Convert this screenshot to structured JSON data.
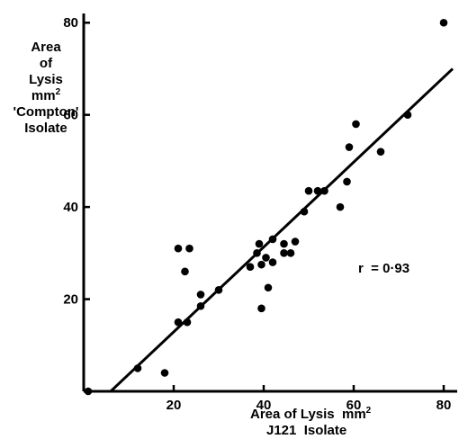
{
  "chart_data": {
    "type": "scatter",
    "ylabel_lines": [
      "Area",
      "of",
      "Lysis",
      "mm",
      "'Compton'",
      "Isolate"
    ],
    "xlabel_lines": [
      "Area of Lysis  mm",
      "J121  Isolate"
    ],
    "unit_superscript": "2",
    "annotation": "r  = 0·93",
    "xlim": [
      0,
      83
    ],
    "ylim": [
      0,
      82
    ],
    "xticks": [
      20,
      40,
      60,
      80
    ],
    "yticks": [
      20,
      40,
      60,
      80
    ],
    "x_tick_labels": [
      "20",
      "40",
      "60",
      "80"
    ],
    "y_tick_labels": [
      "20",
      "40",
      "60",
      "80"
    ],
    "points": [
      {
        "x": 1,
        "y": 0
      },
      {
        "x": 12,
        "y": 5
      },
      {
        "x": 18,
        "y": 4
      },
      {
        "x": 21,
        "y": 31
      },
      {
        "x": 21,
        "y": 15
      },
      {
        "x": 22.5,
        "y": 26
      },
      {
        "x": 23,
        "y": 15
      },
      {
        "x": 23.5,
        "y": 31
      },
      {
        "x": 26,
        "y": 18.5
      },
      {
        "x": 26,
        "y": 21
      },
      {
        "x": 30,
        "y": 22
      },
      {
        "x": 37,
        "y": 27
      },
      {
        "x": 38.5,
        "y": 30
      },
      {
        "x": 39,
        "y": 32
      },
      {
        "x": 39.5,
        "y": 27.5
      },
      {
        "x": 39.5,
        "y": 18
      },
      {
        "x": 40.5,
        "y": 29
      },
      {
        "x": 41,
        "y": 22.5
      },
      {
        "x": 42,
        "y": 28
      },
      {
        "x": 42,
        "y": 33
      },
      {
        "x": 44.5,
        "y": 32
      },
      {
        "x": 44.5,
        "y": 30
      },
      {
        "x": 46,
        "y": 30
      },
      {
        "x": 47,
        "y": 32.5
      },
      {
        "x": 49,
        "y": 39
      },
      {
        "x": 50,
        "y": 43.5
      },
      {
        "x": 52,
        "y": 43.5
      },
      {
        "x": 53.5,
        "y": 43.5
      },
      {
        "x": 57,
        "y": 40
      },
      {
        "x": 58.5,
        "y": 45.5
      },
      {
        "x": 59,
        "y": 53
      },
      {
        "x": 60.5,
        "y": 58
      },
      {
        "x": 66,
        "y": 52
      },
      {
        "x": 72,
        "y": 60
      },
      {
        "x": 80,
        "y": 80
      }
    ],
    "fit_line": {
      "x": [
        6,
        82
      ],
      "y": [
        0,
        70
      ]
    },
    "grid": false,
    "legend": "none"
  }
}
